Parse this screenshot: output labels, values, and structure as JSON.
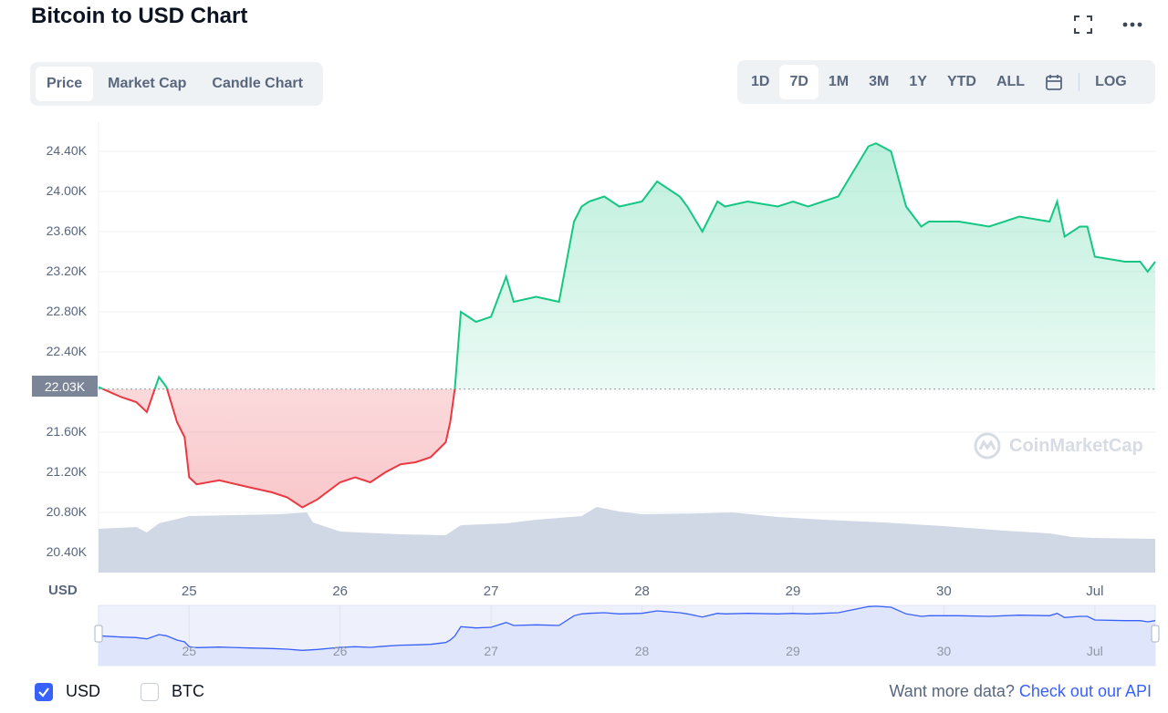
{
  "header": {
    "title": "Bitcoin to USD Chart"
  },
  "tabs": [
    {
      "label": "Price",
      "active": true
    },
    {
      "label": "Market Cap",
      "active": false
    },
    {
      "label": "Candle Chart",
      "active": false
    }
  ],
  "ranges": [
    {
      "label": "1D",
      "active": false
    },
    {
      "label": "7D",
      "active": true
    },
    {
      "label": "1M",
      "active": false
    },
    {
      "label": "3M",
      "active": false
    },
    {
      "label": "1Y",
      "active": false
    },
    {
      "label": "YTD",
      "active": false
    },
    {
      "label": "ALL",
      "active": false
    }
  ],
  "log_label": "LOG",
  "axis": {
    "y_unit": "USD",
    "current_price_label": "22.03K"
  },
  "watermark": "CoinMarketCap",
  "legend": [
    {
      "label": "USD",
      "checked": true
    },
    {
      "label": "BTC",
      "checked": false
    }
  ],
  "footer": {
    "prompt": "Want more data?",
    "link": "Check out our API"
  },
  "colors": {
    "up": "#16c784",
    "down": "#ea3943",
    "accent": "#3861fb",
    "volume": "#cfd6e4"
  },
  "chart_data": {
    "type": "line",
    "ylabel": "USD",
    "ylim": [
      20200,
      24700
    ],
    "y_ticks": [
      "20.40K",
      "20.80K",
      "21.20K",
      "21.60K",
      "22.40K",
      "22.80K",
      "23.20K",
      "23.60K",
      "24.00K",
      "24.40K"
    ],
    "x_ticks": [
      "25",
      "26",
      "27",
      "28",
      "29",
      "30",
      "Jul"
    ],
    "baseline": 22030,
    "series": [
      {
        "x": [
          24.4,
          24.55,
          24.65,
          24.72,
          24.8,
          24.85,
          24.92,
          24.97,
          25.0,
          25.05,
          25.2,
          25.4,
          25.55,
          25.65,
          25.75,
          25.85,
          26.0,
          26.1,
          26.2,
          26.3,
          26.4,
          26.5,
          26.6,
          26.7,
          26.73,
          26.76,
          26.8,
          26.9,
          27.0,
          27.1,
          27.15,
          27.3,
          27.45,
          27.55,
          27.6,
          27.65,
          27.75,
          27.85,
          28.0,
          28.1,
          28.25,
          28.3,
          28.4,
          28.5,
          28.55,
          28.7,
          28.9,
          29.0,
          29.1,
          29.3,
          29.5,
          29.55,
          29.65,
          29.75,
          29.85,
          29.9,
          30.1,
          30.3,
          30.5,
          30.7,
          30.75,
          30.8,
          30.9,
          30.95,
          31.0,
          31.2,
          31.3,
          31.35,
          31.4
        ],
        "values": [
          22050,
          21950,
          21900,
          21800,
          22150,
          22050,
          21700,
          21550,
          21150,
          21080,
          21120,
          21050,
          21000,
          20950,
          20850,
          20930,
          21100,
          21150,
          21100,
          21200,
          21280,
          21300,
          21350,
          21500,
          21700,
          22030,
          22800,
          22700,
          22750,
          23150,
          22900,
          22950,
          22900,
          23700,
          23850,
          23900,
          23950,
          23850,
          23900,
          24100,
          23950,
          23850,
          23600,
          23900,
          23850,
          23900,
          23850,
          23900,
          23850,
          23950,
          24450,
          24480,
          24400,
          23850,
          23650,
          23700,
          23700,
          23650,
          23750,
          23700,
          23900,
          23550,
          23650,
          23650,
          23350,
          23300,
          23300,
          23200,
          23300
        ]
      }
    ]
  }
}
